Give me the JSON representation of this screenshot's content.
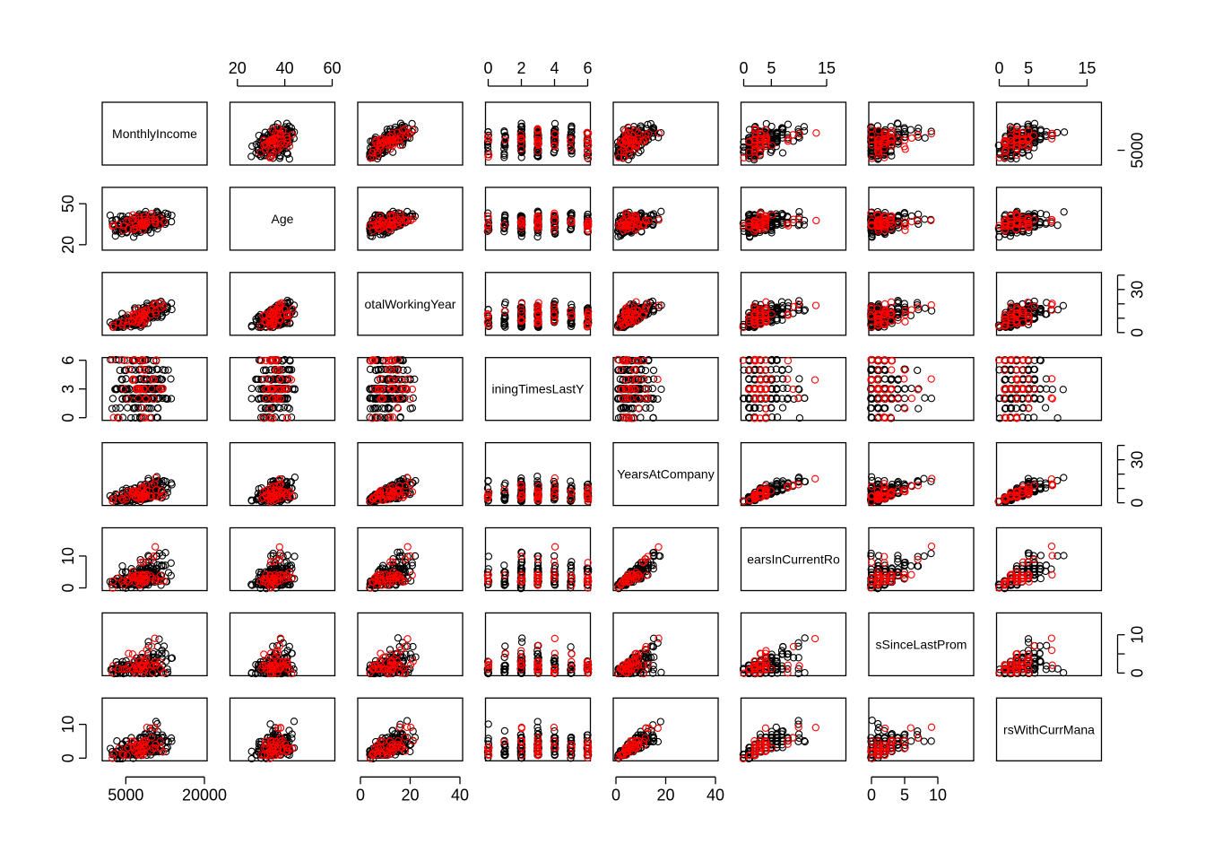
{
  "chart_data": {
    "type": "scatter",
    "chart_kind": "scatterplot matrix",
    "variables": [
      "MonthlyIncome",
      "Age",
      "TotalWorkingYears",
      "TrainingTimesLastYear",
      "YearsAtCompany",
      "YearsInCurrentRole",
      "YearsSinceLastPromotion",
      "YearsWithCurrManager"
    ],
    "diagonal_labels": [
      "MonthlyIncome",
      "Age",
      "otalWorkingYear",
      "iningTimesLastY",
      "YearsAtCompany",
      "earsInCurrentRo",
      "sSinceLastProm",
      "rsWithCurrMana"
    ],
    "ranges": {
      "MonthlyIncome": [
        1009,
        19999
      ],
      "Age": [
        18,
        60
      ],
      "TotalWorkingYears": [
        0,
        40
      ],
      "TrainingTimesLastYear": [
        0,
        6
      ],
      "YearsAtCompany": [
        0,
        40
      ],
      "YearsInCurrentRole": [
        0,
        18
      ],
      "YearsSinceLastPromotion": [
        0,
        15
      ],
      "YearsWithCurrManager": [
        0,
        17
      ]
    },
    "axis_ticks": {
      "MonthlyIncome": {
        "side": "bottom",
        "ticks": [
          {
            "v": 5000,
            "t": "5000"
          },
          {
            "v": 20000,
            "t": "20000"
          }
        ]
      },
      "Age_top": {
        "side": "top",
        "ticks": [
          {
            "v": 20,
            "t": "20"
          },
          {
            "v": 40,
            "t": "40"
          },
          {
            "v": 60,
            "t": "60"
          }
        ]
      },
      "TotalWorkingYears": {
        "side": "bottom",
        "ticks": [
          {
            "v": 0,
            "t": "0"
          },
          {
            "v": 20,
            "t": "20"
          },
          {
            "v": 40,
            "t": "40"
          }
        ]
      },
      "TrainingTimesLastYear": {
        "side": "top",
        "ticks": [
          {
            "v": 0,
            "t": "0"
          },
          {
            "v": 2,
            "t": "2"
          },
          {
            "v": 4,
            "t": "4"
          },
          {
            "v": 6,
            "t": "6"
          }
        ]
      },
      "YearsAtCompany": {
        "side": "bottom",
        "ticks": [
          {
            "v": 0,
            "t": "0"
          },
          {
            "v": 20,
            "t": "20"
          },
          {
            "v": 40,
            "t": "40"
          }
        ]
      },
      "YearsInCurrentRole": {
        "side": "top",
        "ticks": [
          {
            "v": 0,
            "t": "0"
          },
          {
            "v": 5,
            "t": "5"
          },
          {
            "v": 15,
            "t": "15"
          }
        ]
      },
      "YearsSinceLastPromotion": {
        "side": "bottom",
        "ticks": [
          {
            "v": 0,
            "t": "0"
          },
          {
            "v": 5,
            "t": "5"
          },
          {
            "v": 10,
            "t": "10"
          }
        ]
      },
      "YearsWithCurrManager": {
        "side": "top",
        "ticks": [
          {
            "v": 0,
            "t": "0"
          },
          {
            "v": 5,
            "t": "5"
          },
          {
            "v": 15,
            "t": "15"
          }
        ]
      }
    },
    "y_axis_ticks": {
      "Age": {
        "side": "left",
        "ticks": [
          {
            "v": 20,
            "t": "20"
          },
          {
            "v": 50,
            "t": "50"
          }
        ]
      },
      "TrainingTimesLastYear": {
        "side": "left",
        "ticks": [
          {
            "v": 0,
            "t": "0"
          },
          {
            "v": 3,
            "t": "3"
          },
          {
            "v": 6,
            "t": "6"
          }
        ]
      },
      "YearsInCurrentRole": {
        "side": "left",
        "ticks": [
          {
            "v": 0,
            "t": "0"
          },
          {
            "v": 10,
            "t": "10"
          }
        ]
      },
      "YearsWithCurrManager": {
        "side": "left",
        "ticks": [
          {
            "v": 0,
            "t": "0"
          },
          {
            "v": 10,
            "t": "10"
          }
        ]
      },
      "MonthlyIncome": {
        "side": "right",
        "ticks": [
          {
            "v": 5000,
            "t": "5000"
          }
        ]
      },
      "TotalWorkingYears": {
        "side": "right",
        "ticks": [
          {
            "v": 0,
            "t": "0"
          },
          {
            "v": 10,
            "t": ""
          },
          {
            "v": 20,
            "t": ""
          },
          {
            "v": 30,
            "t": "30"
          },
          {
            "v": 40,
            "t": ""
          }
        ]
      },
      "YearsAtCompany": {
        "side": "right",
        "ticks": [
          {
            "v": 0,
            "t": "0"
          },
          {
            "v": 10,
            "t": ""
          },
          {
            "v": 20,
            "t": ""
          },
          {
            "v": 30,
            "t": "30"
          },
          {
            "v": 40,
            "t": ""
          }
        ]
      },
      "YearsSinceLastPromotion": {
        "side": "right",
        "ticks": [
          {
            "v": 0,
            "t": "0"
          },
          {
            "v": 5,
            "t": ""
          },
          {
            "v": 10,
            "t": "10"
          }
        ]
      }
    },
    "series": [
      {
        "color": "#000000",
        "n_points": 180
      },
      {
        "color": "#ff0000",
        "n_points": 45
      }
    ],
    "grid": false,
    "point_shape": "open circle"
  }
}
